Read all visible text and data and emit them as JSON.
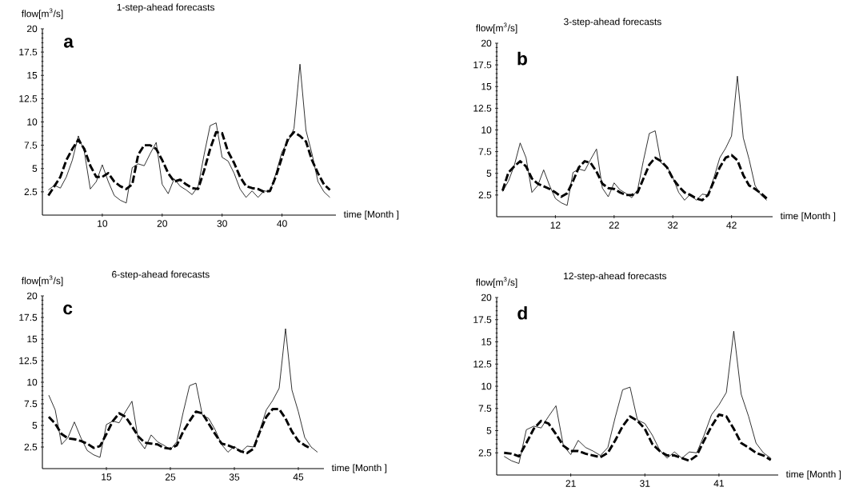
{
  "chart_data": [
    {
      "type": "line",
      "title": "1-step-ahead forecasts",
      "ylabel": "flow[m$^{3}$/s]",
      "xlabel": "time [Month ]",
      "annotations": [
        "a"
      ],
      "xlim": [
        0,
        49
      ],
      "ylim": [
        0,
        20
      ],
      "xticks": [
        10,
        20,
        30,
        40
      ],
      "yticks": [
        2.5,
        5,
        7.5,
        10,
        12.5,
        15,
        17.5,
        20
      ],
      "series": [
        {
          "color": "#000000",
          "line_style": "solid",
          "x": [
            1,
            2,
            3,
            4,
            5,
            6,
            7,
            8,
            9,
            10,
            11,
            12,
            13,
            14,
            15,
            16,
            17,
            18,
            19,
            20,
            21,
            22,
            23,
            24,
            25,
            26,
            27,
            28,
            29,
            30,
            31,
            32,
            33,
            34,
            35,
            36,
            37,
            38,
            39,
            40,
            41,
            42,
            43,
            44,
            45,
            46,
            47,
            48
          ],
          "values": [
            2.7,
            3.2,
            2.9,
            4.1,
            5.9,
            8.5,
            6.8,
            2.8,
            3.6,
            5.4,
            3.6,
            2.1,
            1.6,
            1.3,
            5.1,
            5.5,
            5.3,
            6.6,
            7.8,
            3.3,
            2.3,
            3.9,
            3.1,
            2.7,
            2.2,
            3.1,
            6.5,
            9.6,
            9.9,
            6.2,
            5.8,
            4.5,
            2.8,
            1.9,
            2.6,
            1.9,
            2.6,
            2.5,
            4.5,
            6.8,
            7.9,
            9.3,
            16.2,
            9.1,
            6.6,
            3.6,
            2.5,
            1.9
          ]
        },
        {
          "color": "#000000",
          "line_style": "dashed",
          "x": [
            1,
            2,
            3,
            4,
            5,
            6,
            7,
            8,
            9,
            10,
            11,
            12,
            13,
            14,
            15,
            16,
            17,
            18,
            19,
            20,
            21,
            22,
            23,
            24,
            25,
            26,
            27,
            28,
            29,
            30,
            31,
            32,
            33,
            34,
            35,
            36,
            37,
            38,
            39,
            40,
            41,
            42,
            43,
            44,
            45,
            46,
            47,
            48
          ],
          "values": [
            2.1,
            3.1,
            4.1,
            5.9,
            7.1,
            8.1,
            7.1,
            5.3,
            4.1,
            4.1,
            4.5,
            3.6,
            3.1,
            2.8,
            3.3,
            6.5,
            7.5,
            7.5,
            7.1,
            5.9,
            4.5,
            3.6,
            3.8,
            3.3,
            2.9,
            2.8,
            4.8,
            7.1,
            8.9,
            8.8,
            6.8,
            5.6,
            4.1,
            3.1,
            2.9,
            2.8,
            2.5,
            2.6,
            4.2,
            6.2,
            8.2,
            8.9,
            8.5,
            7.9,
            5.9,
            4.5,
            3.3,
            2.7
          ]
        }
      ]
    },
    {
      "type": "line",
      "title": "3-step-ahead forecasts",
      "ylabel": "flow[m$^{3}$/s]",
      "xlabel": "time [Month ]",
      "annotations": [
        "b"
      ],
      "xlim": [
        2,
        49
      ],
      "ylim": [
        0,
        20
      ],
      "xticks": [
        12,
        22,
        32,
        42
      ],
      "yticks": [
        2.5,
        5,
        7.5,
        10,
        12.5,
        15,
        17.5,
        20
      ],
      "series": [
        {
          "color": "#000000",
          "line_style": "solid",
          "x": [
            3,
            4,
            5,
            6,
            7,
            8,
            9,
            10,
            11,
            12,
            13,
            14,
            15,
            16,
            17,
            18,
            19,
            20,
            21,
            22,
            23,
            24,
            25,
            26,
            27,
            28,
            29,
            30,
            31,
            32,
            33,
            34,
            35,
            36,
            37,
            38,
            39,
            40,
            41,
            42,
            43,
            44,
            45,
            46,
            47,
            48
          ],
          "values": [
            2.9,
            4.1,
            5.9,
            8.5,
            6.8,
            2.8,
            3.6,
            5.4,
            3.6,
            2.1,
            1.6,
            1.3,
            5.1,
            5.5,
            5.3,
            6.6,
            7.8,
            3.3,
            2.3,
            3.9,
            3.1,
            2.7,
            2.2,
            3.1,
            6.5,
            9.6,
            9.9,
            6.2,
            5.8,
            4.5,
            2.8,
            1.9,
            2.6,
            1.9,
            2.6,
            2.5,
            4.5,
            6.8,
            7.9,
            9.3,
            16.2,
            9.1,
            6.6,
            3.6,
            2.5,
            1.9
          ]
        },
        {
          "color": "#000000",
          "line_style": "dashed",
          "x": [
            3,
            4,
            5,
            6,
            7,
            8,
            9,
            10,
            11,
            12,
            13,
            14,
            15,
            16,
            17,
            18,
            19,
            20,
            21,
            22,
            23,
            24,
            25,
            26,
            27,
            28,
            29,
            30,
            31,
            32,
            33,
            34,
            35,
            36,
            37,
            38,
            39,
            40,
            41,
            42,
            43,
            44,
            45,
            46,
            47,
            48
          ],
          "values": [
            3.0,
            5.1,
            5.8,
            6.4,
            5.8,
            4.4,
            3.8,
            3.5,
            3.2,
            2.8,
            2.3,
            2.7,
            4.1,
            5.7,
            6.4,
            6.2,
            5.2,
            3.8,
            3.3,
            3.2,
            2.8,
            2.5,
            2.5,
            2.8,
            4.4,
            6.0,
            6.8,
            6.4,
            5.7,
            4.4,
            3.5,
            2.8,
            2.5,
            2.1,
            1.9,
            2.5,
            4.1,
            5.7,
            6.8,
            7.1,
            6.5,
            4.8,
            3.6,
            3.2,
            2.7,
            2.1
          ]
        }
      ]
    },
    {
      "type": "line",
      "title": "6-step-ahead forecasts",
      "ylabel": "flow[m$^{3}$/s]",
      "xlabel": "time [Month ]",
      "annotations": [
        "c"
      ],
      "xlim": [
        5,
        49
      ],
      "ylim": [
        0,
        20
      ],
      "xticks": [
        15,
        25,
        35,
        45
      ],
      "yticks": [
        2.5,
        5,
        7.5,
        10,
        12.5,
        15,
        17.5,
        20
      ],
      "series": [
        {
          "color": "#000000",
          "line_style": "solid",
          "x": [
            6,
            7,
            8,
            9,
            10,
            11,
            12,
            13,
            14,
            15,
            16,
            17,
            18,
            19,
            20,
            21,
            22,
            23,
            24,
            25,
            26,
            27,
            28,
            29,
            30,
            31,
            32,
            33,
            34,
            35,
            36,
            37,
            38,
            39,
            40,
            41,
            42,
            43,
            44,
            45,
            46,
            47,
            48
          ],
          "values": [
            8.5,
            6.8,
            2.8,
            3.6,
            5.4,
            3.6,
            2.1,
            1.6,
            1.3,
            5.1,
            5.5,
            5.3,
            6.6,
            7.8,
            3.3,
            2.3,
            3.9,
            3.1,
            2.7,
            2.2,
            3.1,
            6.5,
            9.6,
            9.9,
            6.2,
            5.8,
            4.5,
            2.8,
            1.9,
            2.6,
            1.9,
            2.6,
            2.5,
            4.5,
            6.8,
            7.9,
            9.3,
            16.2,
            9.1,
            6.6,
            3.6,
            2.5,
            1.9
          ]
        },
        {
          "color": "#000000",
          "line_style": "dashed",
          "x": [
            6,
            7,
            8,
            9,
            10,
            11,
            12,
            13,
            14,
            15,
            16,
            17,
            18,
            19,
            20,
            21,
            22,
            23,
            24,
            25,
            26,
            27,
            28,
            29,
            30,
            31,
            32,
            33,
            34,
            35,
            36,
            37,
            38,
            39,
            40,
            41,
            42,
            43,
            44,
            45,
            46,
            47
          ],
          "values": [
            6.0,
            5.2,
            4.0,
            3.5,
            3.4,
            3.2,
            2.9,
            2.4,
            2.6,
            4.0,
            5.5,
            6.4,
            6.0,
            4.9,
            3.7,
            3.0,
            2.9,
            2.8,
            2.4,
            2.3,
            2.7,
            4.3,
            5.5,
            6.6,
            6.4,
            5.2,
            4.0,
            2.9,
            2.7,
            2.4,
            2.0,
            1.8,
            2.3,
            4.3,
            6.0,
            6.9,
            6.9,
            5.8,
            4.3,
            3.2,
            2.7,
            2.3
          ]
        }
      ]
    },
    {
      "type": "line",
      "title": "12-step-ahead forecasts",
      "ylabel": "flow[m$^{3}$/s]",
      "xlabel": "time [Month ]",
      "annotations": [
        "d"
      ],
      "xlim": [
        11,
        49
      ],
      "ylim": [
        0,
        20
      ],
      "xticks": [
        21,
        31,
        41
      ],
      "yticks": [
        2.5,
        5,
        7.5,
        10,
        12.5,
        15,
        17.5,
        20
      ],
      "series": [
        {
          "color": "#000000",
          "line_style": "solid",
          "x": [
            12,
            13,
            14,
            15,
            16,
            17,
            18,
            19,
            20,
            21,
            22,
            23,
            24,
            25,
            26,
            27,
            28,
            29,
            30,
            31,
            32,
            33,
            34,
            35,
            36,
            37,
            38,
            39,
            40,
            41,
            42,
            43,
            44,
            45,
            46,
            47,
            48
          ],
          "values": [
            2.1,
            1.6,
            1.3,
            5.1,
            5.5,
            5.3,
            6.6,
            7.8,
            3.3,
            2.3,
            3.9,
            3.1,
            2.7,
            2.2,
            3.1,
            6.5,
            9.6,
            9.9,
            6.2,
            5.8,
            4.5,
            2.8,
            1.9,
            2.6,
            1.9,
            2.6,
            2.5,
            4.5,
            6.8,
            7.9,
            9.3,
            16.2,
            9.1,
            6.6,
            3.6,
            2.5,
            1.9
          ]
        },
        {
          "color": "#000000",
          "line_style": "dashed",
          "x": [
            12,
            13,
            14,
            15,
            16,
            17,
            18,
            19,
            20,
            21,
            22,
            23,
            24,
            25,
            26,
            27,
            28,
            29,
            30,
            31,
            32,
            33,
            34,
            35,
            36,
            37,
            38,
            39,
            40,
            41,
            42,
            43,
            44,
            45,
            46,
            47,
            48
          ],
          "values": [
            2.5,
            2.4,
            2.1,
            3.6,
            5.2,
            6.1,
            5.8,
            4.6,
            3.3,
            2.7,
            2.7,
            2.4,
            2.2,
            2.0,
            2.5,
            3.9,
            5.5,
            6.6,
            6.1,
            5.2,
            3.5,
            2.7,
            2.2,
            2.2,
            1.9,
            1.6,
            2.2,
            3.9,
            5.5,
            6.8,
            6.6,
            5.2,
            3.6,
            3.1,
            2.5,
            2.2,
            1.7
          ]
        }
      ]
    }
  ]
}
